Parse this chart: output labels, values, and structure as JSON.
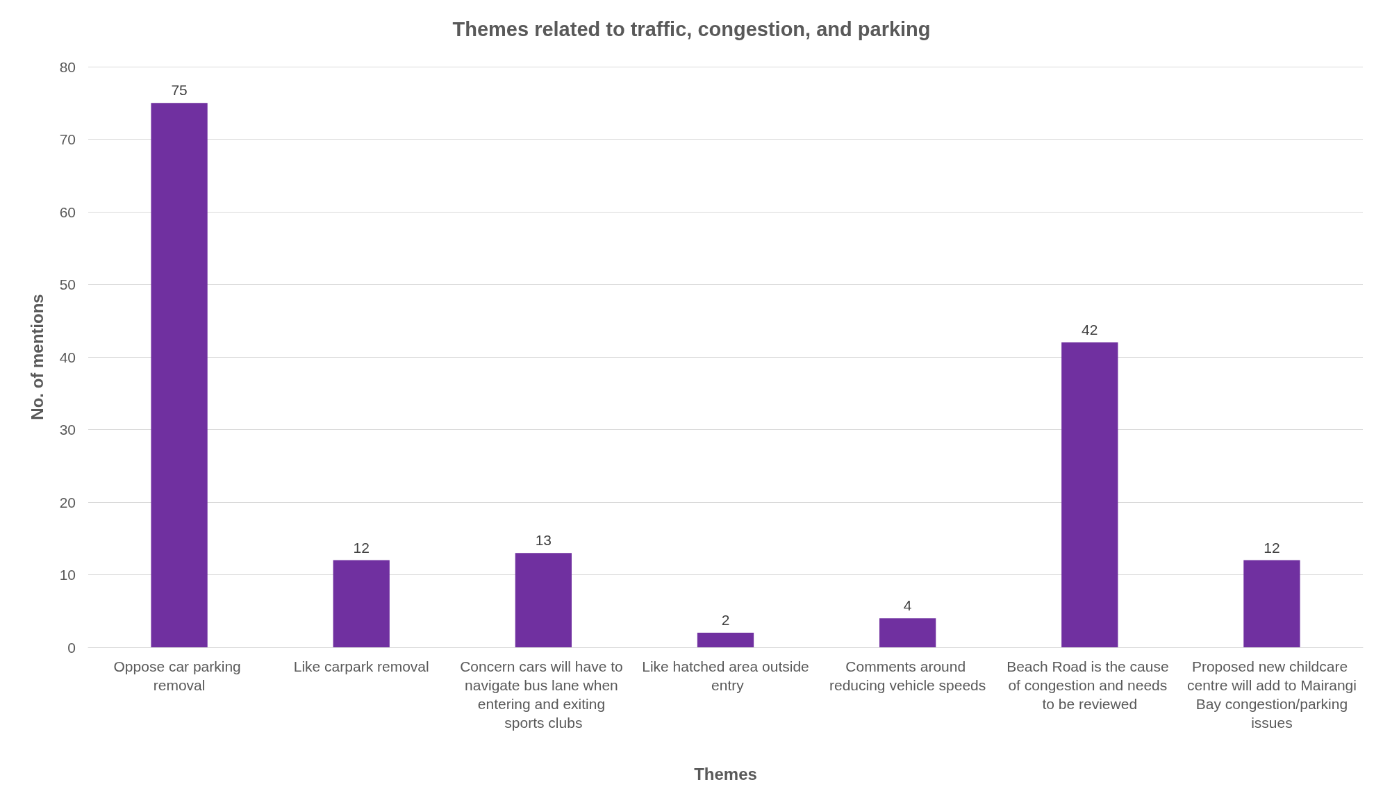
{
  "chart_data": {
    "type": "bar",
    "title": "Themes related to traffic, congestion, and parking",
    "xlabel": "Themes",
    "ylabel": "No. of mentions",
    "categories": [
      "Oppose car parking removal",
      "Like carpark removal",
      "Concern cars will have to navigate bus lane when entering and exiting sports clubs",
      "Like hatched area outside entry",
      "Comments around reducing vehicle speeds",
      "Beach Road is the cause of congestion and needs to be reviewed",
      "Proposed new childcare centre will add to Mairangi Bay congestion/parking issues"
    ],
    "values": [
      75,
      12,
      13,
      2,
      4,
      42,
      12
    ],
    "color": "#7030a0",
    "ylim": [
      0,
      80
    ],
    "yticks": [
      0,
      10,
      20,
      30,
      40,
      50,
      60,
      70,
      80
    ],
    "grid": "y",
    "data_labels": true
  }
}
